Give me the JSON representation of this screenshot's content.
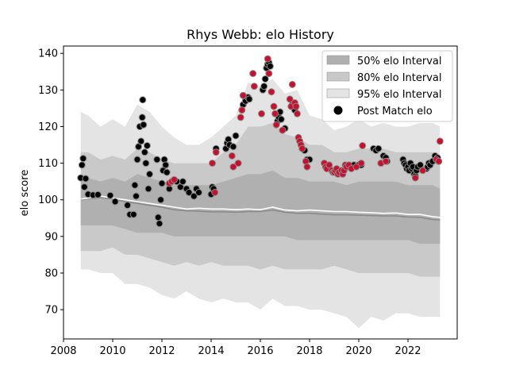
{
  "chart_data": {
    "type": "scatter",
    "title": "Rhys Webb: elo History",
    "xlabel": "",
    "ylabel": "elo score",
    "xlim": [
      2008.0,
      2024.0
    ],
    "ylim": [
      62,
      142
    ],
    "x_ticks": [
      2008,
      2010,
      2012,
      2014,
      2016,
      2018,
      2020,
      2022
    ],
    "y_ticks": [
      70,
      80,
      90,
      100,
      110,
      120,
      130,
      140
    ],
    "grid": false,
    "legend_position": "top-right",
    "legend": [
      {
        "label": "50% elo Interval",
        "kind": "band",
        "color": "#b0b0b0"
      },
      {
        "label": "80% elo Interval",
        "kind": "band",
        "color": "#c8c8c8"
      },
      {
        "label": "95% elo Interval",
        "kind": "band",
        "color": "#e4e4e4"
      },
      {
        "label": "Post Match elo",
        "kind": "marker",
        "color": "#000000"
      }
    ],
    "colors": {
      "band50": "#b0b0b0",
      "band80": "#c9c9c9",
      "band95": "#e4e4e4",
      "win_marker": "#000000",
      "loss_marker": "#c8102e",
      "marker_edge": "#8a8a8a",
      "median_line": "#ffffff",
      "mean_line": "#888888"
    },
    "bands": {
      "x": [
        2008.7,
        2009.0,
        2009.5,
        2010.0,
        2010.5,
        2011.0,
        2011.5,
        2012.0,
        2012.5,
        2013.0,
        2013.5,
        2014.0,
        2014.5,
        2015.0,
        2015.5,
        2016.0,
        2016.5,
        2017.0,
        2017.5,
        2018.0,
        2018.5,
        2019.0,
        2019.5,
        2020.0,
        2020.5,
        2021.0,
        2021.5,
        2022.0,
        2022.5,
        2023.0,
        2023.3
      ],
      "p95_upper": [
        124,
        123,
        120,
        122,
        120,
        126,
        124,
        120,
        117,
        115,
        115,
        117,
        120,
        123,
        132,
        131,
        133,
        129,
        130,
        123,
        122,
        119,
        120,
        122,
        120,
        121,
        120,
        120,
        121,
        121,
        120
      ],
      "p80_upper": [
        113,
        113,
        111,
        112,
        111,
        114,
        113,
        111,
        110,
        110,
        110,
        110,
        113,
        115,
        120,
        120,
        121,
        118,
        117,
        115,
        115,
        113,
        113,
        114,
        114,
        114,
        113,
        113,
        113,
        113,
        112
      ],
      "p50_upper": [
        106,
        106,
        105,
        106,
        105,
        107,
        106,
        105,
        104,
        104,
        104,
        104,
        105,
        106,
        107,
        107,
        108,
        106,
        106,
        105,
        105,
        105,
        104,
        105,
        105,
        105,
        105,
        104,
        104,
        104,
        103
      ],
      "median": [
        100.2,
        100.5,
        101.0,
        100.5,
        100.0,
        99.5,
        99.0,
        98.5,
        98.0,
        97.5,
        97.7,
        97.5,
        97.5,
        97.3,
        97.5,
        97.3,
        98.0,
        97.2,
        97.0,
        97.2,
        97.0,
        96.8,
        96.8,
        96.6,
        96.5,
        96.3,
        96.4,
        96.0,
        96.0,
        95.4,
        95.2
      ],
      "mean": [
        100.0,
        100.3,
        100.6,
        100.2,
        99.5,
        99.0,
        98.5,
        98.0,
        97.3,
        97.0,
        96.9,
        96.7,
        96.7,
        96.6,
        96.8,
        96.8,
        97.2,
        96.6,
        96.3,
        96.3,
        96.1,
        95.9,
        95.9,
        95.8,
        95.7,
        95.6,
        95.6,
        95.3,
        95.2,
        94.6,
        94.5
      ],
      "p50_lower": [
        93,
        93,
        93,
        93,
        92,
        91,
        91,
        91,
        90,
        90,
        90,
        90,
        90,
        90,
        90,
        90,
        90,
        90,
        89,
        89,
        89,
        89,
        89,
        89,
        89,
        89,
        89,
        89,
        88,
        88,
        88
      ],
      "p80_lower": [
        86,
        86,
        86,
        87,
        85,
        85,
        84,
        83,
        82,
        83,
        82,
        83,
        82,
        82,
        82,
        81,
        82,
        81,
        81,
        81,
        81,
        82,
        81,
        80,
        80,
        80,
        80,
        80,
        79,
        79,
        79
      ],
      "p95_lower": [
        81,
        81,
        80,
        80,
        77,
        77,
        76,
        74,
        73,
        75,
        73,
        72,
        73,
        72,
        72,
        70,
        73,
        71,
        71,
        70,
        70,
        69,
        68,
        65,
        68,
        67,
        69,
        69,
        68,
        68,
        68
      ]
    },
    "series": [
      {
        "result": "win",
        "points": [
          [
            2008.7,
            106
          ],
          [
            2008.75,
            109.5
          ],
          [
            2008.8,
            111.3
          ],
          [
            2008.85,
            103.5
          ],
          [
            2008.9,
            105.8
          ],
          [
            2009.0,
            101.5
          ],
          [
            2009.2,
            101.3
          ],
          [
            2009.4,
            101.4
          ],
          [
            2009.9,
            101.2
          ],
          [
            2010.1,
            99.5
          ],
          [
            2010.6,
            98.5
          ],
          [
            2010.7,
            96.0
          ],
          [
            2010.85,
            96.0
          ],
          [
            2010.9,
            104.0
          ],
          [
            2010.95,
            101.0
          ],
          [
            2011.0,
            111.0
          ],
          [
            2011.05,
            114.5
          ],
          [
            2011.1,
            120.0
          ],
          [
            2011.15,
            116.0
          ],
          [
            2011.2,
            122.5
          ],
          [
            2011.22,
            127.3
          ],
          [
            2011.25,
            120.5
          ],
          [
            2011.3,
            113.0
          ],
          [
            2011.35,
            110.0
          ],
          [
            2011.4,
            114.8
          ],
          [
            2011.45,
            103.0
          ],
          [
            2011.5,
            107.0
          ],
          [
            2011.8,
            111.0
          ],
          [
            2011.85,
            95.2
          ],
          [
            2011.9,
            93.5
          ],
          [
            2011.95,
            100.0
          ],
          [
            2012.0,
            104.5
          ],
          [
            2012.05,
            108.0
          ],
          [
            2012.1,
            111.0
          ],
          [
            2012.15,
            109.5
          ],
          [
            2012.2,
            107.5
          ],
          [
            2012.3,
            103.0
          ],
          [
            2012.6,
            105.0
          ],
          [
            2012.75,
            103.5
          ],
          [
            2012.85,
            105.0
          ],
          [
            2013.0,
            103.0
          ],
          [
            2013.1,
            102.0
          ],
          [
            2013.3,
            101.0
          ],
          [
            2013.4,
            103.0
          ],
          [
            2013.5,
            102.0
          ],
          [
            2014.0,
            101.5
          ],
          [
            2014.05,
            103.5
          ],
          [
            2014.1,
            103.0
          ],
          [
            2014.2,
            114.0
          ],
          [
            2014.6,
            114.0
          ],
          [
            2014.65,
            115.5
          ],
          [
            2014.7,
            116.5
          ],
          [
            2014.75,
            115.0
          ],
          [
            2014.9,
            114.5
          ],
          [
            2015.0,
            117.5
          ],
          [
            2015.3,
            126.0
          ],
          [
            2015.4,
            127.0
          ],
          [
            2015.5,
            128.0
          ],
          [
            2015.55,
            127.5
          ],
          [
            2016.1,
            130.0
          ],
          [
            2016.15,
            131.0
          ],
          [
            2016.2,
            133.0
          ],
          [
            2016.25,
            136.0
          ],
          [
            2016.3,
            137.0
          ],
          [
            2016.35,
            137.5
          ],
          [
            2016.4,
            136.5
          ],
          [
            2016.7,
            121.5
          ],
          [
            2016.75,
            122.5
          ],
          [
            2016.8,
            124.0
          ],
          [
            2016.85,
            122.0
          ],
          [
            2017.0,
            119.5
          ],
          [
            2017.3,
            126.0
          ],
          [
            2017.4,
            124.5
          ],
          [
            2017.8,
            113.5
          ],
          [
            2017.9,
            111.0
          ],
          [
            2018.0,
            111.0
          ],
          [
            2019.55,
            109.0
          ],
          [
            2019.7,
            109.0
          ],
          [
            2019.8,
            109.5
          ],
          [
            2020.0,
            109.5
          ],
          [
            2020.1,
            109.5
          ],
          [
            2020.6,
            114.0
          ],
          [
            2020.7,
            113.5
          ],
          [
            2020.8,
            114.0
          ],
          [
            2020.9,
            110.0
          ],
          [
            2021.0,
            112.0
          ],
          [
            2021.1,
            111.5
          ],
          [
            2021.15,
            110.5
          ],
          [
            2021.8,
            111.0
          ],
          [
            2021.85,
            110.0
          ],
          [
            2021.9,
            109.5
          ],
          [
            2021.95,
            108.5
          ],
          [
            2022.0,
            109.0
          ],
          [
            2022.05,
            108.0
          ],
          [
            2022.1,
            110.0
          ],
          [
            2022.15,
            108.5
          ],
          [
            2022.2,
            109.0
          ],
          [
            2022.25,
            107.0
          ],
          [
            2022.3,
            106.5
          ],
          [
            2022.35,
            108.0
          ],
          [
            2022.4,
            109.0
          ],
          [
            2022.5,
            109.5
          ],
          [
            2022.75,
            108.5
          ],
          [
            2022.8,
            109.0
          ],
          [
            2022.85,
            110.0
          ],
          [
            2022.9,
            109.5
          ],
          [
            2023.0,
            110.5
          ],
          [
            2023.1,
            112.0
          ],
          [
            2023.15,
            111.0
          ],
          [
            2023.2,
            111.5
          ]
        ]
      },
      {
        "result": "loss",
        "points": [
          [
            2012.3,
            104.5
          ],
          [
            2012.4,
            105.0
          ],
          [
            2012.5,
            105.5
          ],
          [
            2014.05,
            110.0
          ],
          [
            2014.15,
            102.0
          ],
          [
            2014.2,
            113.0
          ],
          [
            2014.85,
            112.0
          ],
          [
            2014.9,
            109.0
          ],
          [
            2015.1,
            110.0
          ],
          [
            2015.2,
            122.5
          ],
          [
            2015.25,
            124.5
          ],
          [
            2015.3,
            128.5
          ],
          [
            2015.7,
            134.5
          ],
          [
            2015.75,
            131.0
          ],
          [
            2016.05,
            123.5
          ],
          [
            2016.3,
            138.5
          ],
          [
            2016.35,
            134.5
          ],
          [
            2016.45,
            129.5
          ],
          [
            2016.55,
            125.5
          ],
          [
            2016.6,
            123.5
          ],
          [
            2016.65,
            120.5
          ],
          [
            2016.9,
            119.0
          ],
          [
            2017.2,
            127.5
          ],
          [
            2017.25,
            125.5
          ],
          [
            2017.3,
            131.5
          ],
          [
            2017.4,
            126.5
          ],
          [
            2017.45,
            125.5
          ],
          [
            2017.5,
            123.5
          ],
          [
            2017.55,
            117.0
          ],
          [
            2017.6,
            116.0
          ],
          [
            2017.65,
            115.0
          ],
          [
            2017.7,
            114.0
          ],
          [
            2017.85,
            110.5
          ],
          [
            2017.9,
            109.0
          ],
          [
            2018.6,
            110.0
          ],
          [
            2018.65,
            109.0
          ],
          [
            2018.7,
            108.5
          ],
          [
            2018.8,
            109.5
          ],
          [
            2018.9,
            108.0
          ],
          [
            2018.95,
            107.5
          ],
          [
            2019.0,
            107.5
          ],
          [
            2019.05,
            108.0
          ],
          [
            2019.1,
            108.5
          ],
          [
            2019.15,
            107.0
          ],
          [
            2019.2,
            107.5
          ],
          [
            2019.3,
            108.0
          ],
          [
            2019.35,
            107.0
          ],
          [
            2019.4,
            108.0
          ],
          [
            2019.45,
            109.5
          ],
          [
            2019.5,
            109.0
          ],
          [
            2019.6,
            109.5
          ],
          [
            2019.7,
            108.5
          ],
          [
            2019.9,
            109.0
          ],
          [
            2020.1,
            110.0
          ],
          [
            2020.15,
            114.8
          ],
          [
            2020.9,
            110.0
          ],
          [
            2021.1,
            110.5
          ],
          [
            2022.3,
            106.0
          ],
          [
            2022.6,
            108.0
          ],
          [
            2023.15,
            111.0
          ],
          [
            2023.25,
            110.5
          ],
          [
            2023.3,
            116.0
          ]
        ]
      }
    ]
  }
}
